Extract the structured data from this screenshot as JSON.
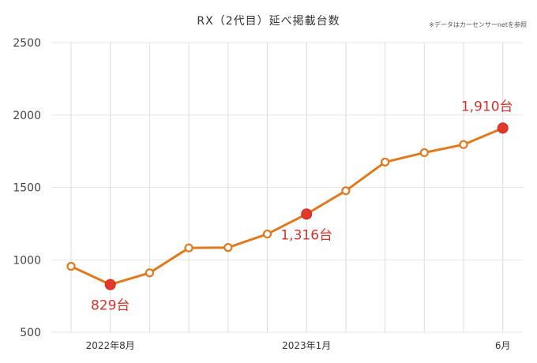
{
  "chart_data": {
    "type": "line",
    "title": "RX（2代目）延べ掲載台数",
    "source_note": "※データはカーセンサーnetを参照",
    "xlabel": "",
    "ylabel": "",
    "ylim": [
      500,
      2500
    ],
    "yticks": [
      500,
      1000,
      1500,
      2000,
      2500
    ],
    "grid": true,
    "x_tick_labels": [
      {
        "index": 1,
        "label": "2022年8月"
      },
      {
        "index": 6,
        "label": "2023年1月"
      },
      {
        "index": 11,
        "label": "6月"
      }
    ],
    "series": [
      {
        "values": [
          955,
          829,
          910,
          1082,
          1085,
          1178,
          1316,
          1477,
          1675,
          1740,
          1796,
          1910
        ],
        "color": "#e07a1f"
      }
    ],
    "highlights": [
      {
        "index": 1,
        "label": "829台"
      },
      {
        "index": 6,
        "label": "1,316台"
      },
      {
        "index": 11,
        "label": "1,910台"
      }
    ],
    "highlight_color": "#e23a2a",
    "label_color": "#d0342c"
  }
}
